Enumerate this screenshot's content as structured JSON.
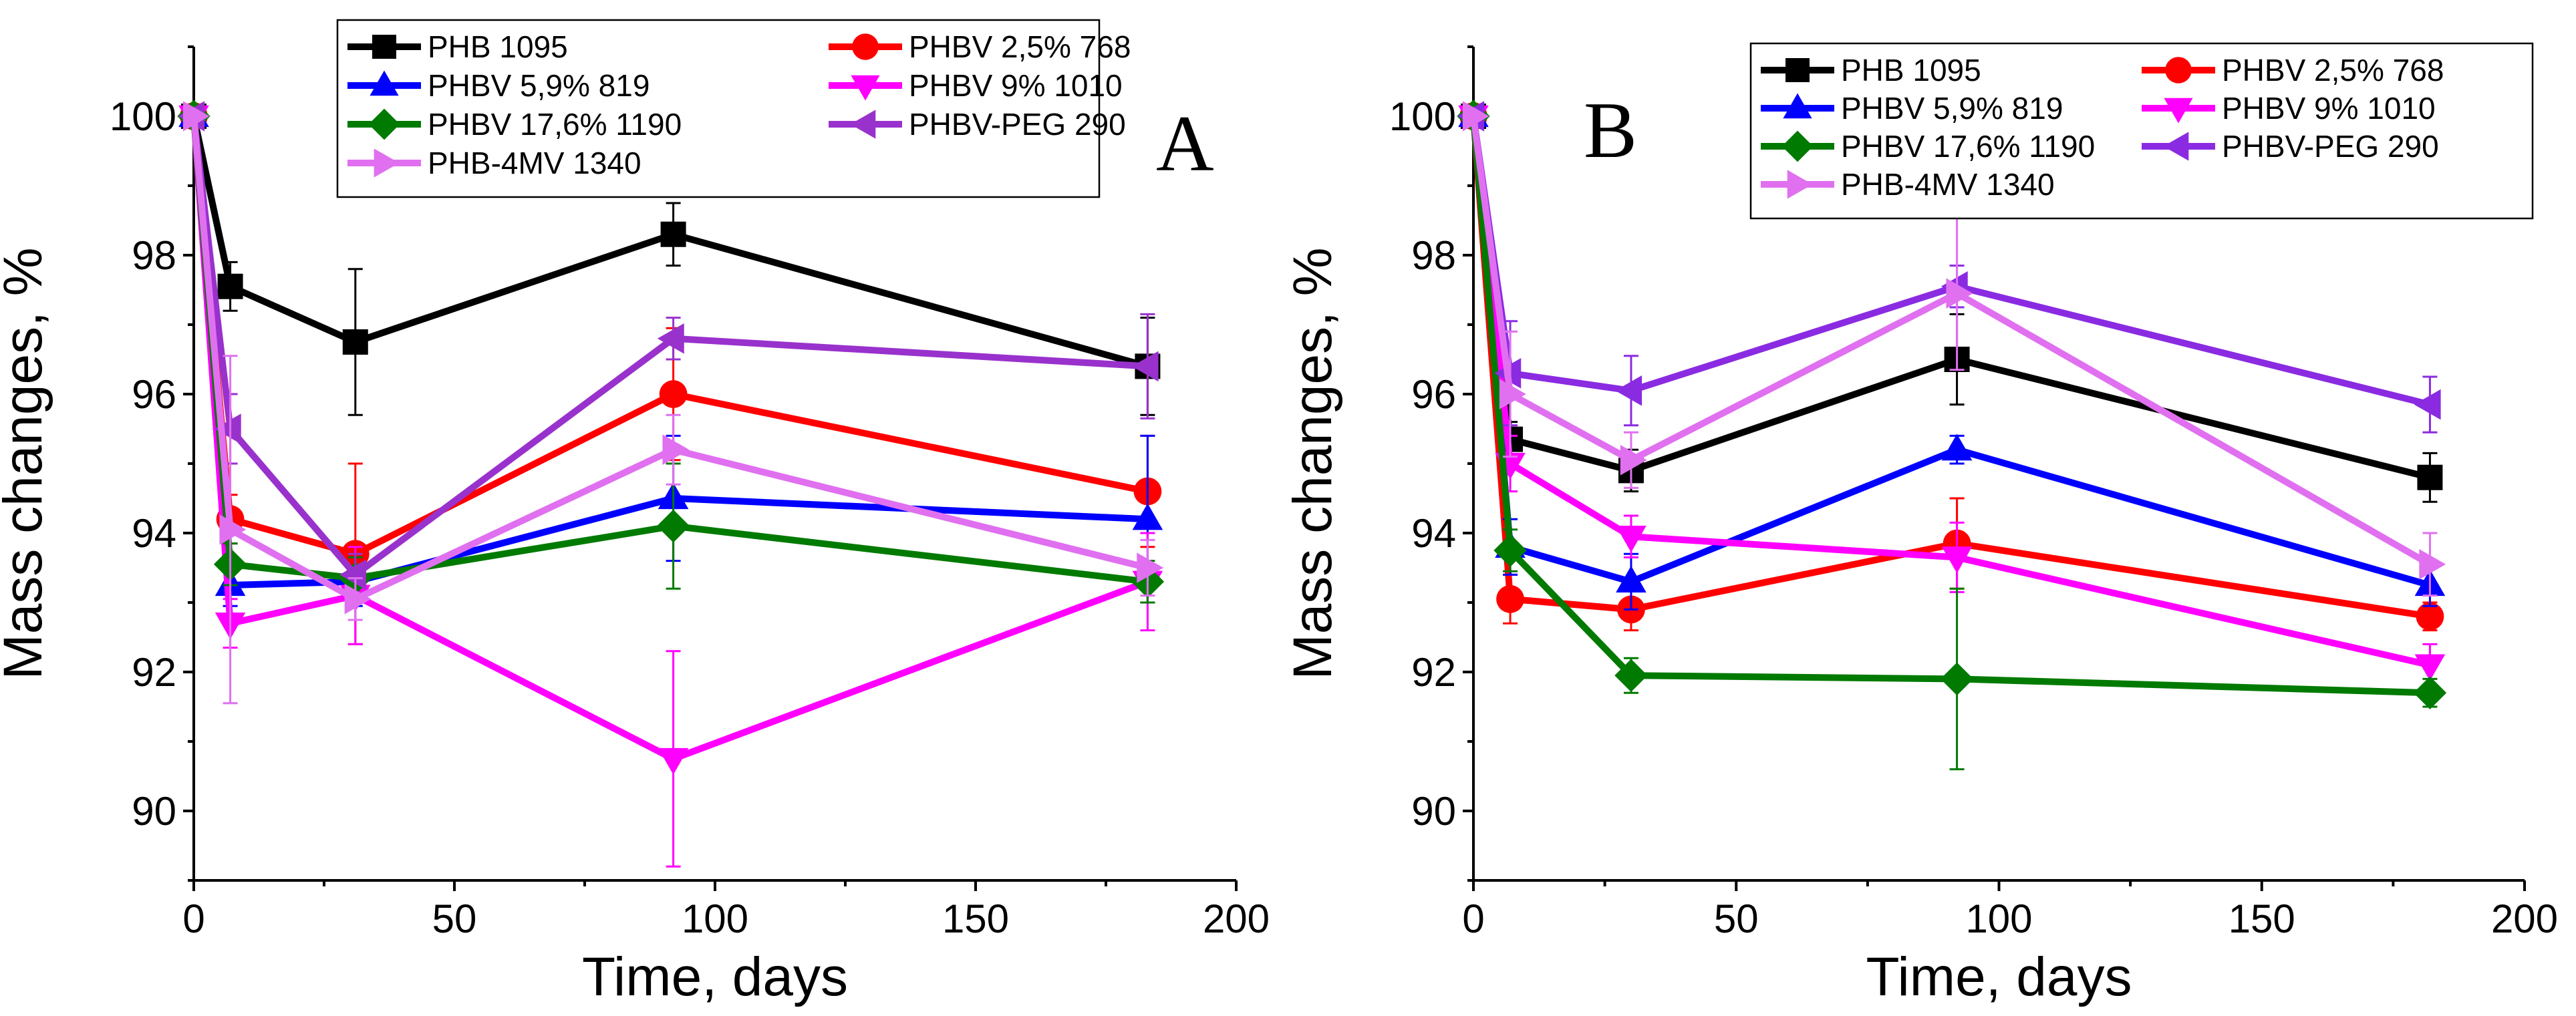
{
  "chart_data": [
    {
      "type": "line",
      "panel_label": "A",
      "xlabel": "Time, days",
      "ylabel": "Mass changes, %",
      "xlim": [
        0,
        200
      ],
      "ylim": [
        89,
        101
      ],
      "xticks": [
        0,
        50,
        100,
        150,
        200
      ],
      "yticks": [
        90,
        92,
        94,
        96,
        98,
        100
      ],
      "legend_position": "top",
      "series": [
        {
          "name": "PHB 1095",
          "color": "#000000",
          "marker": "square",
          "x": [
            0,
            7,
            31,
            92,
            183
          ],
          "y": [
            100.0,
            97.55,
            96.75,
            98.3,
            96.4
          ],
          "error": [
            0,
            0.35,
            1.05,
            0.45,
            0.7
          ]
        },
        {
          "name": "PHBV 2,5% 768",
          "color": "#ff0000",
          "marker": "circle",
          "x": [
            0,
            7,
            31,
            92,
            183
          ],
          "y": [
            100.0,
            94.2,
            93.7,
            96.0,
            94.6
          ],
          "error": [
            0,
            0.35,
            1.3,
            0.95,
            0.8
          ]
        },
        {
          "name": "PHBV 5,9% 819",
          "color": "#0000ff",
          "marker": "triangle-up",
          "x": [
            0,
            7,
            31,
            92,
            183
          ],
          "y": [
            100.0,
            93.25,
            93.3,
            94.5,
            94.2
          ],
          "error": [
            0,
            0.3,
            0.35,
            0.9,
            1.2
          ]
        },
        {
          "name": "PHBV 9% 1010",
          "color": "#ff00ff",
          "marker": "triangle-down",
          "x": [
            0,
            7,
            31,
            92,
            183
          ],
          "y": [
            100.0,
            92.7,
            93.1,
            90.75,
            93.3
          ],
          "error": [
            0,
            0.35,
            0.7,
            1.55,
            0.7
          ]
        },
        {
          "name": "PHBV 17,6% 1190",
          "color": "#007a00",
          "marker": "diamond",
          "x": [
            0,
            7,
            31,
            92,
            183
          ],
          "y": [
            100.0,
            93.55,
            93.35,
            94.1,
            93.3
          ],
          "error": [
            0,
            0.3,
            0.3,
            0.9,
            0.3
          ]
        },
        {
          "name": "PHBV-PEG 290",
          "color": "#9932cc",
          "marker": "triangle-left",
          "x": [
            0,
            7,
            31,
            92,
            183
          ],
          "y": [
            100.0,
            95.5,
            93.4,
            96.8,
            96.4
          ],
          "error": [
            0,
            0.5,
            0.3,
            0.3,
            0.75
          ]
        },
        {
          "name": "PHB-4MV 1340",
          "color": "#e070f0",
          "marker": "triangle-right",
          "x": [
            0,
            7,
            31,
            92,
            183
          ],
          "y": [
            100.0,
            94.05,
            93.05,
            95.2,
            93.5
          ],
          "error": [
            0,
            2.5,
            0.3,
            0.5,
            0.4
          ]
        }
      ]
    },
    {
      "type": "line",
      "panel_label": "B",
      "xlabel": "Time, days",
      "ylabel": "Mass changes, %",
      "xlim": [
        0,
        200
      ],
      "ylim": [
        89,
        101
      ],
      "xticks": [
        0,
        50,
        100,
        150,
        200
      ],
      "yticks": [
        90,
        92,
        94,
        96,
        98,
        100
      ],
      "legend_position": "top",
      "series": [
        {
          "name": "PHB 1095",
          "color": "#000000",
          "marker": "square",
          "x": [
            0,
            7,
            30,
            92,
            182
          ],
          "y": [
            100.0,
            95.35,
            94.9,
            96.5,
            94.8
          ],
          "error": [
            0,
            0.25,
            0.3,
            0.65,
            0.35
          ]
        },
        {
          "name": "PHBV 2,5% 768",
          "color": "#ff0000",
          "marker": "circle",
          "x": [
            0,
            7,
            30,
            92,
            182
          ],
          "y": [
            100.0,
            93.05,
            92.9,
            93.85,
            92.8
          ],
          "error": [
            0,
            0.35,
            0.3,
            0.65,
            0.2
          ]
        },
        {
          "name": "PHBV 5,9% 819",
          "color": "#0000ff",
          "marker": "triangle-up",
          "x": [
            0,
            7,
            30,
            92,
            182
          ],
          "y": [
            100.0,
            93.8,
            93.3,
            95.2,
            93.25
          ],
          "error": [
            0,
            0.4,
            0.4,
            0.2,
            0.3
          ]
        },
        {
          "name": "PHBV 9% 1010",
          "color": "#ff00ff",
          "marker": "triangle-down",
          "x": [
            0,
            7,
            30,
            92,
            182
          ],
          "y": [
            100.0,
            95.0,
            93.95,
            93.65,
            92.1
          ],
          "error": [
            0,
            0.4,
            0.3,
            0.5,
            0.3
          ]
        },
        {
          "name": "PHBV 17,6% 1190",
          "color": "#007a00",
          "marker": "diamond",
          "x": [
            0,
            7,
            30,
            92,
            182
          ],
          "y": [
            100.0,
            93.75,
            91.95,
            91.9,
            91.7
          ],
          "error": [
            0,
            0.3,
            0.25,
            1.3,
            0.2
          ]
        },
        {
          "name": "PHBV-PEG 290",
          "color": "#8a2be2",
          "marker": "triangle-left",
          "x": [
            0,
            7,
            30,
            92,
            182
          ],
          "y": [
            100.0,
            96.3,
            96.05,
            97.55,
            95.85
          ],
          "error": [
            0,
            0.75,
            0.5,
            0.3,
            0.4
          ]
        },
        {
          "name": "PHB-4MV 1340",
          "color": "#e070f0",
          "marker": "triangle-right",
          "x": [
            0,
            7,
            30,
            92,
            182
          ],
          "y": [
            100.0,
            96.0,
            95.05,
            97.45,
            93.55
          ],
          "error": [
            0,
            0.9,
            0.4,
            1.1,
            0.45
          ]
        }
      ]
    }
  ]
}
